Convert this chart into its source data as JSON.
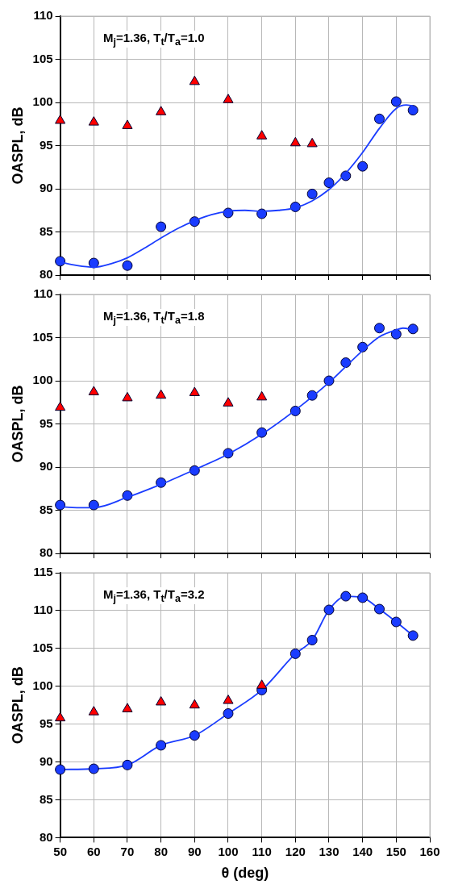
{
  "chart_data": [
    {
      "type": "scatter",
      "ylabel": "OASPL, dB",
      "annotations": [
        "M$_{j}$=1.36, T$_{t}$/T$_{a}$=1.0"
      ],
      "xlim": [
        50,
        160
      ],
      "xticks": [
        50,
        60,
        70,
        80,
        90,
        100,
        110,
        120,
        130,
        140,
        150,
        160
      ],
      "ylim": [
        80,
        110
      ],
      "yticks": [
        80,
        85,
        90,
        95,
        100,
        105,
        110
      ],
      "grid": true,
      "legend": false,
      "tick_labels": "y",
      "series": [
        {
          "type": "scatter",
          "marker": "triangle",
          "color": "#ff0000",
          "x": [
            50,
            60,
            70,
            80,
            90,
            100,
            110,
            120,
            125
          ],
          "values": [
            97.9,
            97.7,
            97.3,
            98.9,
            102.4,
            100.3,
            96.1,
            95.3,
            95.2
          ]
        },
        {
          "type": "line",
          "marker": "none",
          "color": "#1a3cff",
          "x": [
            50,
            55,
            60,
            65,
            70,
            75,
            80,
            85,
            90,
            95,
            100,
            105,
            110,
            115,
            120,
            125,
            130,
            135,
            140,
            145,
            150,
            153,
            155
          ],
          "values": [
            81.5,
            81.1,
            80.9,
            81.3,
            82.0,
            83.1,
            84.3,
            85.4,
            86.3,
            87.0,
            87.4,
            87.5,
            87.4,
            87.5,
            87.8,
            88.6,
            89.9,
            91.8,
            94.2,
            97.0,
            99.3,
            99.7,
            99.6
          ]
        },
        {
          "type": "scatter",
          "marker": "circle",
          "color": "#1a3cff",
          "x": [
            50,
            60,
            70,
            80,
            90,
            100,
            110,
            120,
            125,
            130,
            135,
            140,
            145,
            150,
            155
          ],
          "values": [
            81.6,
            81.4,
            81.1,
            85.6,
            86.2,
            87.2,
            87.1,
            87.9,
            89.4,
            90.7,
            91.5,
            92.6,
            98.1,
            100.1,
            99.1
          ]
        }
      ]
    },
    {
      "type": "scatter",
      "ylabel": "OASPL, dB",
      "annotations": [
        "M$_{j}$=1.36, T$_{t}$/T$_{a}$=1.8"
      ],
      "xlim": [
        50,
        160
      ],
      "xticks": [
        50,
        60,
        70,
        80,
        90,
        100,
        110,
        120,
        130,
        140,
        150,
        160
      ],
      "ylim": [
        80,
        110
      ],
      "yticks": [
        80,
        85,
        90,
        95,
        100,
        105,
        110
      ],
      "grid": true,
      "legend": false,
      "tick_labels": "y",
      "series": [
        {
          "type": "scatter",
          "marker": "triangle",
          "color": "#ff0000",
          "x": [
            50,
            60,
            70,
            80,
            90,
            100,
            110
          ],
          "values": [
            96.9,
            98.7,
            98.0,
            98.3,
            98.6,
            97.4,
            98.1
          ]
        },
        {
          "type": "line",
          "marker": "none",
          "color": "#1a3cff",
          "x": [
            50,
            55,
            60,
            70,
            80,
            90,
            100,
            110,
            120,
            130,
            140,
            145,
            150,
            152,
            155
          ],
          "values": [
            85.4,
            85.3,
            85.3,
            86.5,
            88.0,
            89.7,
            91.5,
            93.8,
            96.6,
            99.8,
            103.5,
            105.1,
            105.9,
            106.1,
            105.9
          ]
        },
        {
          "type": "scatter",
          "marker": "circle",
          "color": "#1a3cff",
          "x": [
            50,
            60,
            70,
            80,
            90,
            100,
            110,
            120,
            125,
            130,
            135,
            140,
            145,
            150,
            155
          ],
          "values": [
            85.6,
            85.6,
            86.7,
            88.2,
            89.6,
            91.6,
            94.0,
            96.5,
            98.3,
            100.0,
            102.1,
            103.9,
            106.1,
            105.4,
            106.0
          ]
        }
      ]
    },
    {
      "type": "scatter",
      "xlabel": "θ (deg)",
      "ylabel": "OASPL, dB",
      "annotations": [
        "M$_{j}$=1.36, T$_{t}$/T$_{a}$=3.2"
      ],
      "xlim": [
        50,
        160
      ],
      "xticks": [
        50,
        60,
        70,
        80,
        90,
        100,
        110,
        120,
        130,
        140,
        150,
        160
      ],
      "ylim": [
        80,
        115
      ],
      "yticks": [
        80,
        85,
        90,
        95,
        100,
        105,
        110,
        115
      ],
      "grid": true,
      "legend": false,
      "series": [
        {
          "type": "scatter",
          "marker": "triangle",
          "color": "#ff0000",
          "x": [
            50,
            60,
            70,
            80,
            90,
            100,
            110
          ],
          "values": [
            95.8,
            96.6,
            97.0,
            97.9,
            97.5,
            98.1,
            100.1
          ]
        },
        {
          "type": "line",
          "marker": "circle",
          "color": "#1a3cff",
          "x": [
            50,
            60,
            70,
            80,
            90,
            100,
            110,
            120,
            125,
            130,
            135,
            140,
            145,
            150,
            155
          ],
          "values": [
            89.0,
            89.1,
            89.6,
            92.2,
            93.5,
            96.4,
            99.5,
            104.3,
            106.1,
            110.1,
            111.9,
            111.7,
            110.2,
            108.5,
            106.7
          ]
        }
      ]
    }
  ]
}
